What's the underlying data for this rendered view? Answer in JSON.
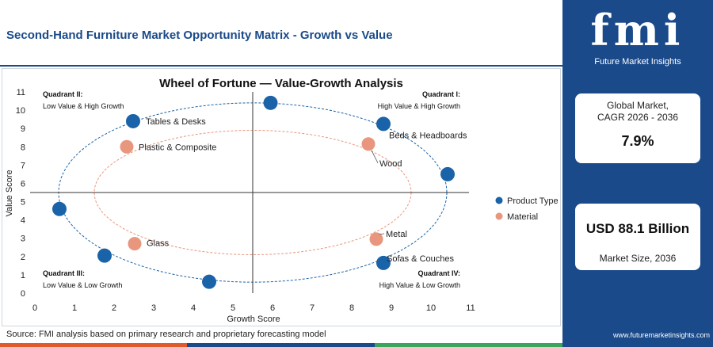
{
  "page": {
    "title": "Second-Hand Furniture Market Opportunity Matrix - Growth vs Value",
    "source": "Source: FMI analysis based on primary research and proprietary forecasting model",
    "website": "www.futuremarketinsights.com"
  },
  "brand": {
    "logo_text": "fmi",
    "logo_subtitle": "Future Market Insights",
    "primary_color": "#1a4a8a"
  },
  "stats": {
    "cagr_label": "Global Market, CAGR 2026 - 2036",
    "cagr_value": "7.9%",
    "size_value": "USD 88.1 Billion",
    "size_label": "Market Size, 2036"
  },
  "quadrants": [
    {
      "title": "Quadrant II:",
      "desc": "Low Value & High Growth",
      "pos": "top-left"
    },
    {
      "title": "Quadrant I:",
      "desc": "High Value & High Growth",
      "pos": "top-right"
    },
    {
      "title": "Quadrant III:",
      "desc": "Low Value & Low Growth",
      "pos": "bottom-left"
    },
    {
      "title": "Quadrant IV:",
      "desc": "High Value & Low Growth",
      "pos": "bottom-right"
    }
  ],
  "chart_data": {
    "type": "scatter",
    "title": "Wheel of Fortune — Value-Growth Analysis",
    "xlabel": "Growth Score",
    "ylabel": "Value Score",
    "xlim": [
      0,
      11
    ],
    "ylim": [
      0,
      11
    ],
    "xticks": [
      0,
      1,
      2,
      3,
      4,
      5,
      6,
      7,
      8,
      9,
      10,
      11
    ],
    "yticks": [
      0,
      1,
      2,
      3,
      4,
      5,
      6,
      7,
      8,
      9,
      10,
      11
    ],
    "grid": false,
    "divider_x": 5.5,
    "divider_y": 5.5,
    "legend_position": "right",
    "series": [
      {
        "name": "Product Type",
        "color": "#1a63a8",
        "points": [
          {
            "x": 5.95,
            "y": 10.4,
            "label": ""
          },
          {
            "x": 2.48,
            "y": 9.4,
            "label": "Tables & Desks"
          },
          {
            "x": 8.8,
            "y": 9.25,
            "label": "Beds & Headboards"
          },
          {
            "x": 10.42,
            "y": 6.5,
            "label": ""
          },
          {
            "x": 0.62,
            "y": 4.6,
            "label": ""
          },
          {
            "x": 1.76,
            "y": 2.05,
            "label": ""
          },
          {
            "x": 4.4,
            "y": 0.62,
            "label": ""
          },
          {
            "x": 8.8,
            "y": 1.65,
            "label": "Sofas & Couches"
          }
        ]
      },
      {
        "name": "Material",
        "color": "#e8967e",
        "points": [
          {
            "x": 2.32,
            "y": 8.0,
            "label": "Plastic & Composite"
          },
          {
            "x": 8.42,
            "y": 8.15,
            "label": "Wood"
          },
          {
            "x": 2.52,
            "y": 2.7,
            "label": "Glass"
          },
          {
            "x": 8.62,
            "y": 2.95,
            "label": "Metal"
          }
        ]
      }
    ]
  }
}
